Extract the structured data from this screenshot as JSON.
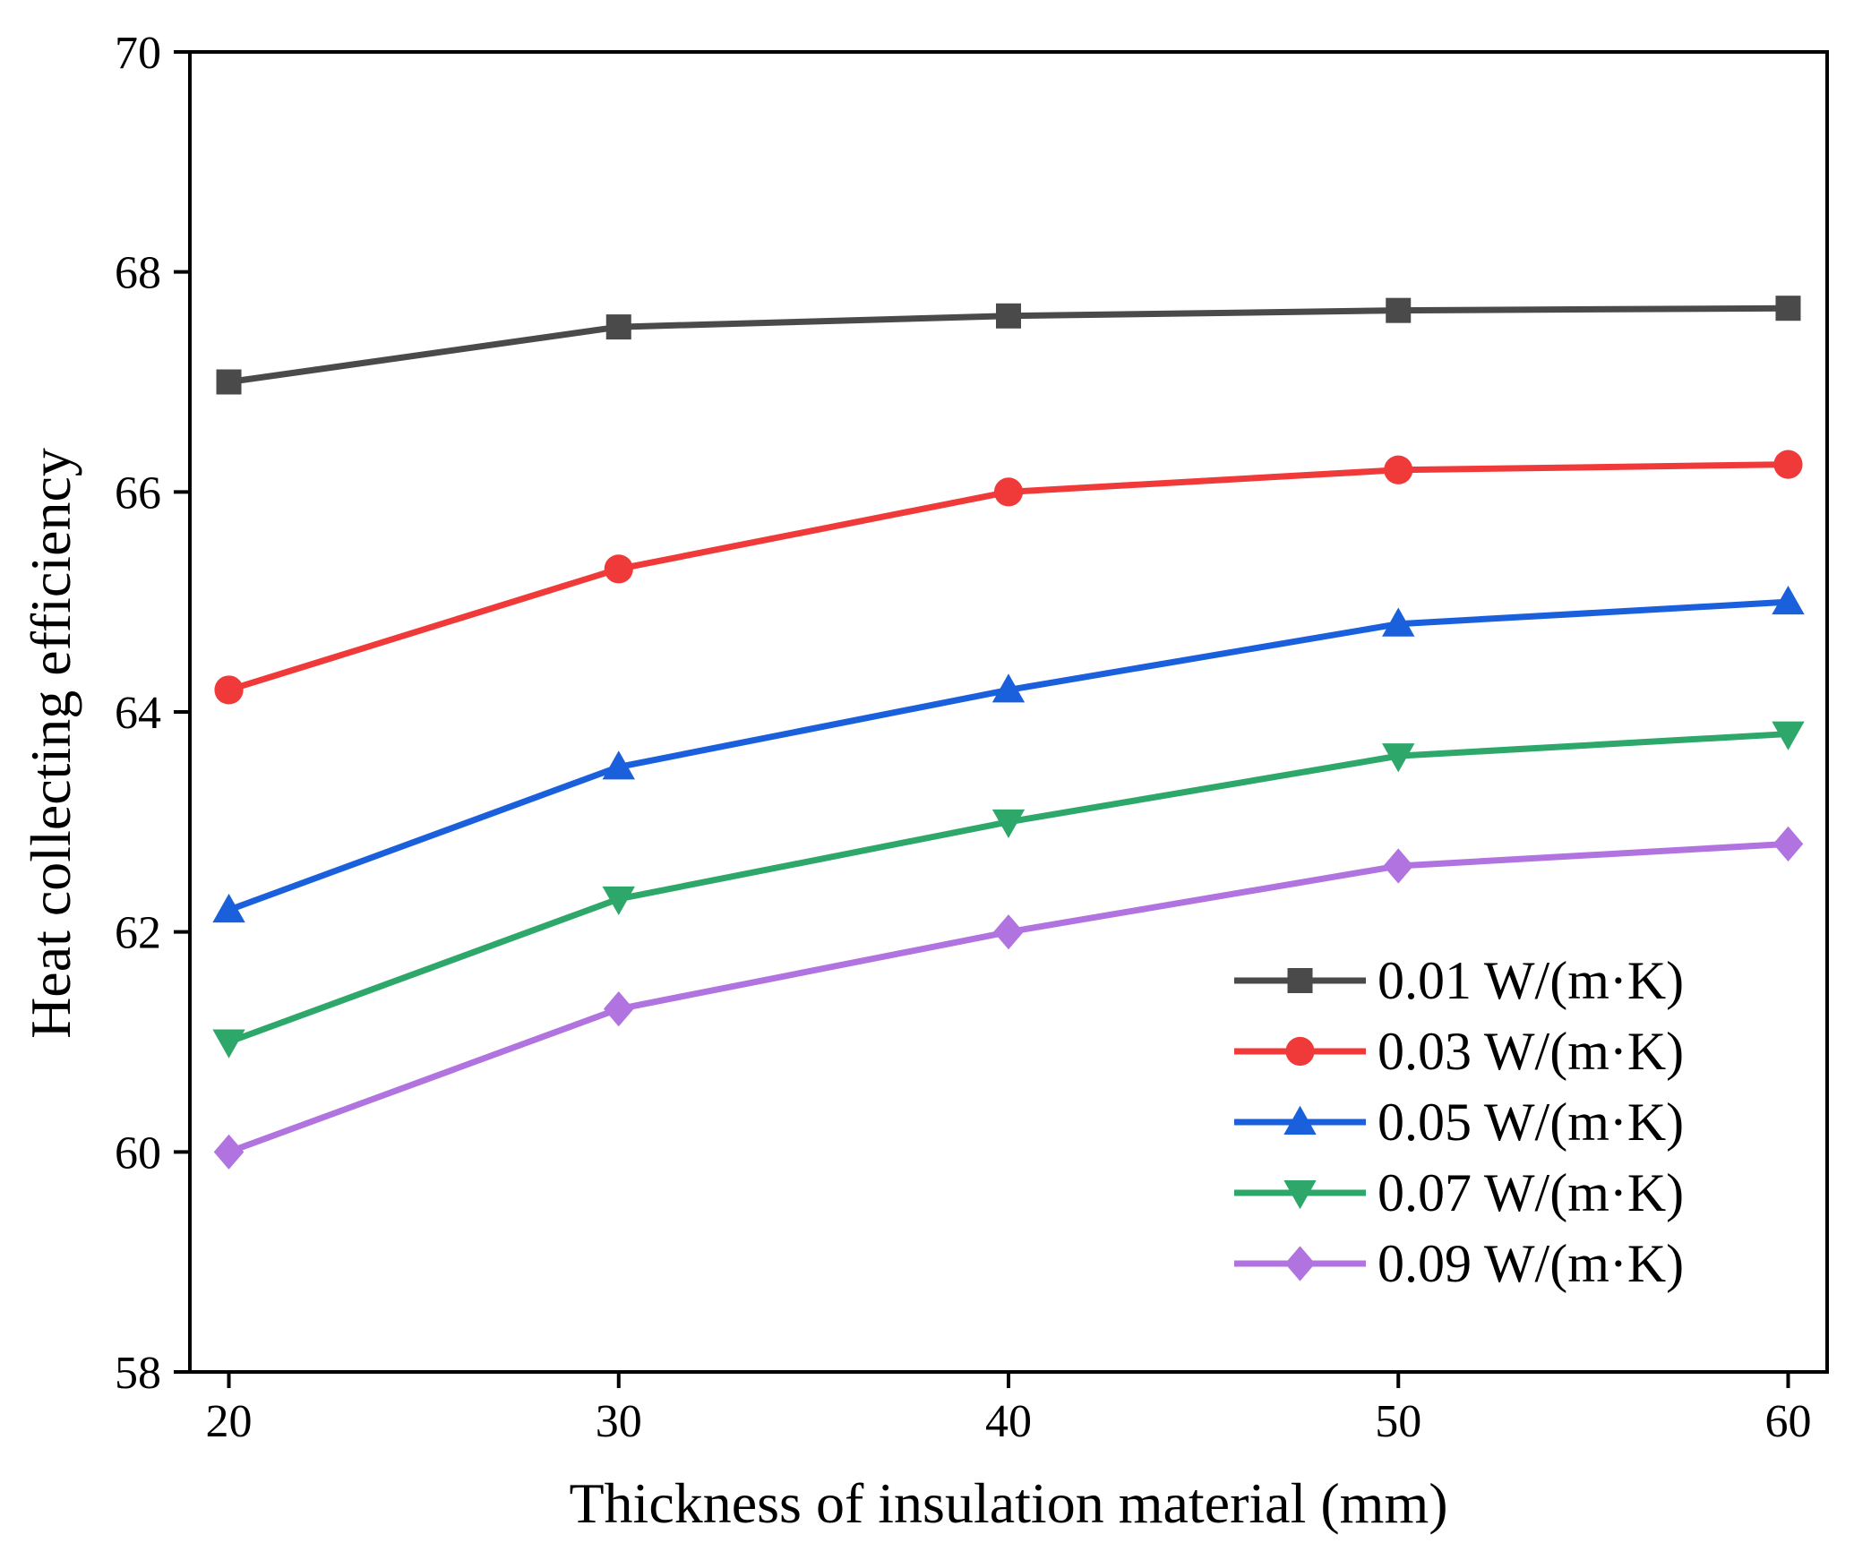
{
  "chart_data": {
    "type": "line",
    "title": "",
    "xlabel": "Thickness of insulation material (mm)",
    "ylabel": "Heat collecting efficiency",
    "x": [
      20,
      30,
      40,
      50,
      60
    ],
    "xlim": [
      19,
      61
    ],
    "ylim": [
      58,
      70
    ],
    "xticks": [
      20,
      30,
      40,
      50,
      60
    ],
    "yticks": [
      58,
      60,
      62,
      64,
      66,
      68,
      70
    ],
    "grid": false,
    "legend_position": "bottom-right",
    "series": [
      {
        "name": "0.01 W/(m·K)",
        "marker": "square",
        "color": "#4a4a4a",
        "values": [
          67.0,
          67.5,
          67.6,
          67.65,
          67.67
        ]
      },
      {
        "name": "0.03 W/(m·K)",
        "marker": "circle",
        "color": "#f03a3a",
        "values": [
          64.2,
          65.3,
          66.0,
          66.2,
          66.25
        ]
      },
      {
        "name": "0.05 W/(m·K)",
        "marker": "triangle-up",
        "color": "#1a5fdc",
        "values": [
          62.2,
          63.5,
          64.2,
          64.8,
          65.0
        ]
      },
      {
        "name": "0.07 W/(m·K)",
        "marker": "triangle-down",
        "color": "#2ea86a",
        "values": [
          61.0,
          62.3,
          63.0,
          63.6,
          63.8
        ]
      },
      {
        "name": "0.09 W/(m·K)",
        "marker": "diamond",
        "color": "#b073e0",
        "values": [
          60.0,
          61.3,
          62.0,
          62.6,
          62.8
        ]
      }
    ]
  }
}
